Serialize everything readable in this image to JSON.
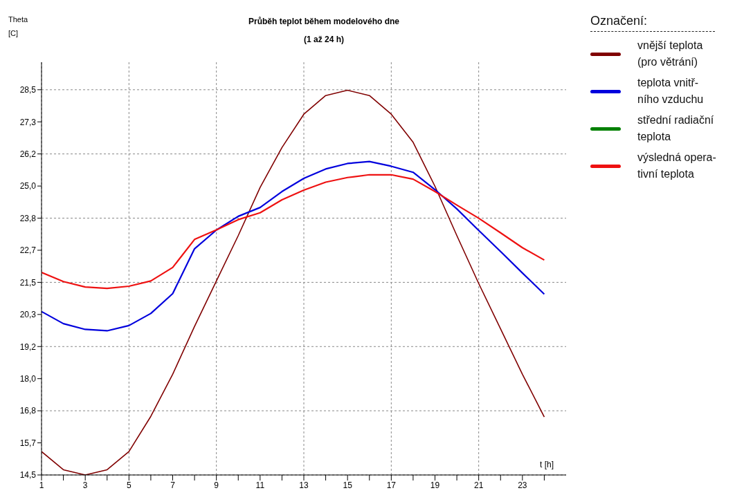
{
  "chart_data": {
    "type": "line",
    "title": "Průběh teplot během modelového dne",
    "subtitle": "(1 až 24 h)",
    "xlabel": "t [h]",
    "ylabel": "Theta [C]",
    "legend_title": "Označení:",
    "x": [
      1,
      2,
      3,
      4,
      5,
      6,
      7,
      8,
      9,
      10,
      11,
      12,
      13,
      14,
      15,
      16,
      17,
      18,
      19,
      20,
      21,
      22,
      23,
      24
    ],
    "series": [
      {
        "name": "vnější teplota (pro větrání)",
        "color": "#800000",
        "values": [
          15.35,
          14.69,
          14.5,
          14.69,
          15.35,
          16.63,
          18.16,
          19.9,
          21.55,
          23.2,
          24.95,
          26.4,
          27.61,
          28.29,
          28.48,
          28.29,
          27.61,
          26.59,
          24.99,
          23.2,
          21.46,
          19.81,
          18.16,
          16.61
        ]
      },
      {
        "name": "teplota vnitř-ního vzduchu",
        "color": "#0000dd",
        "values": [
          20.44,
          20.0,
          19.79,
          19.74,
          19.93,
          20.37,
          21.09,
          22.72,
          23.4,
          23.9,
          24.22,
          24.8,
          25.28,
          25.62,
          25.82,
          25.89,
          25.72,
          25.5,
          24.87,
          24.17,
          23.39,
          22.62,
          21.84,
          21.07
        ]
      },
      {
        "name": "střední radiační teplota",
        "color": "#008000",
        "values": [
          null,
          null,
          null,
          null,
          null,
          null,
          null,
          null,
          null,
          null,
          null,
          null,
          null,
          null,
          null,
          null,
          null,
          null,
          null,
          null,
          null,
          null,
          null,
          null
        ]
      },
      {
        "name": "výsledná opera-tivní teplota",
        "color": "#ee1111",
        "values": [
          21.86,
          21.53,
          21.33,
          21.28,
          21.36,
          21.55,
          22.04,
          23.06,
          23.41,
          23.78,
          24.03,
          24.5,
          24.85,
          25.14,
          25.31,
          25.41,
          25.41,
          25.25,
          24.8,
          24.31,
          23.83,
          23.3,
          22.76,
          22.31
        ]
      }
    ],
    "xlim": [
      1,
      25
    ],
    "xticks": [
      1,
      {
        "value": 2,
        "label": null
      },
      3,
      {
        "value": 4,
        "label": null
      },
      5,
      {
        "value": 6,
        "label": null
      },
      7,
      {
        "value": 8,
        "label": null
      },
      9,
      {
        "value": 10,
        "label": null
      },
      11,
      {
        "value": 12,
        "label": null
      },
      13,
      {
        "value": 14,
        "label": null
      },
      15,
      {
        "value": 16,
        "label": null
      },
      17,
      {
        "value": 18,
        "label": null
      },
      19,
      {
        "value": 20,
        "label": null
      },
      21,
      {
        "value": 22,
        "label": null
      },
      23,
      {
        "value": 24,
        "label": null
      }
    ],
    "ylim": [
      14.5,
      29.5
    ],
    "yticks": [
      {
        "value": 14.5,
        "label": "14,5"
      },
      {
        "value": 15.667,
        "label": "15,7"
      },
      {
        "value": 16.833,
        "label": "16,8"
      },
      {
        "value": 18.0,
        "label": "18,0"
      },
      {
        "value": 19.167,
        "label": "19,2"
      },
      {
        "value": 20.333,
        "label": "20,3"
      },
      {
        "value": 21.5,
        "label": "21,5"
      },
      {
        "value": 22.667,
        "label": "22,7"
      },
      {
        "value": 23.833,
        "label": "23,8"
      },
      {
        "value": 25.0,
        "label": "25,0"
      },
      {
        "value": 26.167,
        "label": "26,2"
      },
      {
        "value": 27.333,
        "label": "27,3"
      },
      {
        "value": 28.5,
        "label": "28,5"
      }
    ],
    "grid": true,
    "legend": "right",
    "marker": "none",
    "line_style": "solid"
  }
}
